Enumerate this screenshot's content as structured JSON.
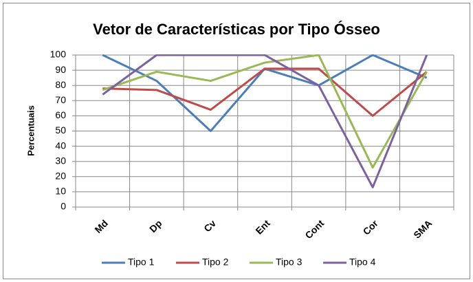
{
  "chart_data": {
    "type": "line",
    "title": "Vetor de Características por Tipo Ósseo",
    "y_label": "Percentuais",
    "categories": [
      "Md",
      "Dp",
      "Cv",
      "Ent",
      "Cont",
      "Cor",
      "SMA"
    ],
    "series": [
      {
        "name": "Tipo 1",
        "color": "#4a7ebb",
        "values": [
          100,
          83,
          50,
          91,
          80,
          100,
          85
        ]
      },
      {
        "name": "Tipo 2",
        "color": "#be4b48",
        "values": [
          78,
          77,
          64,
          91,
          91,
          60,
          89
        ]
      },
      {
        "name": "Tipo 3",
        "color": "#98b954",
        "values": [
          77,
          89,
          83,
          95,
          100,
          26,
          89
        ]
      },
      {
        "name": "Tipo 4",
        "color": "#7d60a0",
        "values": [
          74,
          100,
          100,
          100,
          80,
          13,
          100
        ]
      }
    ],
    "ylim": [
      0,
      100
    ],
    "yticks": [
      0,
      10,
      20,
      30,
      40,
      50,
      60,
      70,
      80,
      90,
      100
    ],
    "grid": true,
    "legend": "bottom"
  }
}
